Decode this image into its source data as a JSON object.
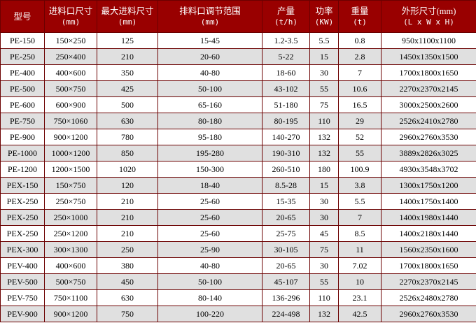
{
  "colors": {
    "header_bg": "#990000",
    "header_text": "#ffffff",
    "border": "#6b0000",
    "row_alt": "#e0e0e0",
    "row": "#ffffff"
  },
  "headers": [
    {
      "label": "型号",
      "unit": ""
    },
    {
      "label": "进料口尺寸",
      "unit": "(mm)"
    },
    {
      "label": "最大进料尺寸",
      "unit": "(mm)"
    },
    {
      "label": "排料口调节范围",
      "unit": "(mm)"
    },
    {
      "label": "产量",
      "unit": "(t/h)"
    },
    {
      "label": "功率",
      "unit": "(KW)"
    },
    {
      "label": "重量",
      "unit": "(t)"
    },
    {
      "label": "外形尺寸(mm)",
      "unit": "(L x W x H)"
    }
  ],
  "rows": [
    [
      "PE-150",
      "150×250",
      "125",
      "15-45",
      "1.2-3.5",
      "5.5",
      "0.8",
      "950x1100x1100"
    ],
    [
      "PE-250",
      "250×400",
      "210",
      "20-60",
      "5-22",
      "15",
      "2.8",
      "1450x1350x1500"
    ],
    [
      "PE-400",
      "400×600",
      "350",
      "40-80",
      "18-60",
      "30",
      "7",
      "1700x1800x1650"
    ],
    [
      "PE-500",
      "500×750",
      "425",
      "50-100",
      "43-102",
      "55",
      "10.6",
      "2270x2370x2145"
    ],
    [
      "PE-600",
      "600×900",
      "500",
      "65-160",
      "51-180",
      "75",
      "16.5",
      "3000x2500x2600"
    ],
    [
      "PE-750",
      "750×1060",
      "630",
      "80-180",
      "80-195",
      "110",
      "29",
      "2526x2410x2780"
    ],
    [
      "PE-900",
      "900×1200",
      "780",
      "95-180",
      "140-270",
      "132",
      "52",
      "2960x2760x3530"
    ],
    [
      "PE-1000",
      "1000×1200",
      "850",
      "195-280",
      "190-310",
      "132",
      "55",
      "3889x2826x3025"
    ],
    [
      "PE-1200",
      "1200×1500",
      "1020",
      "150-300",
      "260-510",
      "180",
      "100.9",
      "4930x3548x3702"
    ],
    [
      "PEX-150",
      "150×750",
      "120",
      "18-40",
      "8.5-28",
      "15",
      "3.8",
      "1300x1750x1200"
    ],
    [
      "PEX-250",
      "250×750",
      "210",
      "25-60",
      "15-35",
      "30",
      "5.5",
      "1400x1750x1400"
    ],
    [
      "PEX-250",
      "250×1000",
      "210",
      "25-60",
      "20-65",
      "30",
      "7",
      "1400x1980x1440"
    ],
    [
      "PEX-250",
      "250×1200",
      "210",
      "25-60",
      "25-75",
      "45",
      "8.5",
      "1400x2180x1440"
    ],
    [
      "PEX-300",
      "300×1300",
      "250",
      "25-90",
      "30-105",
      "75",
      "11",
      "1560x2350x1600"
    ],
    [
      "PEV-400",
      "400×600",
      "380",
      "40-80",
      "20-65",
      "30",
      "7.02",
      "1700x1800x1650"
    ],
    [
      "PEV-500",
      "500×750",
      "450",
      "50-100",
      "45-107",
      "55",
      "10",
      "2270x2370x2145"
    ],
    [
      "PEV-750",
      "750×1100",
      "630",
      "80-140",
      "136-296",
      "110",
      "23.1",
      "2526x2480x2780"
    ],
    [
      "PEV-900",
      "900×1200",
      "750",
      "100-220",
      "224-498",
      "132",
      "42.5",
      "2960x2760x3530"
    ]
  ]
}
